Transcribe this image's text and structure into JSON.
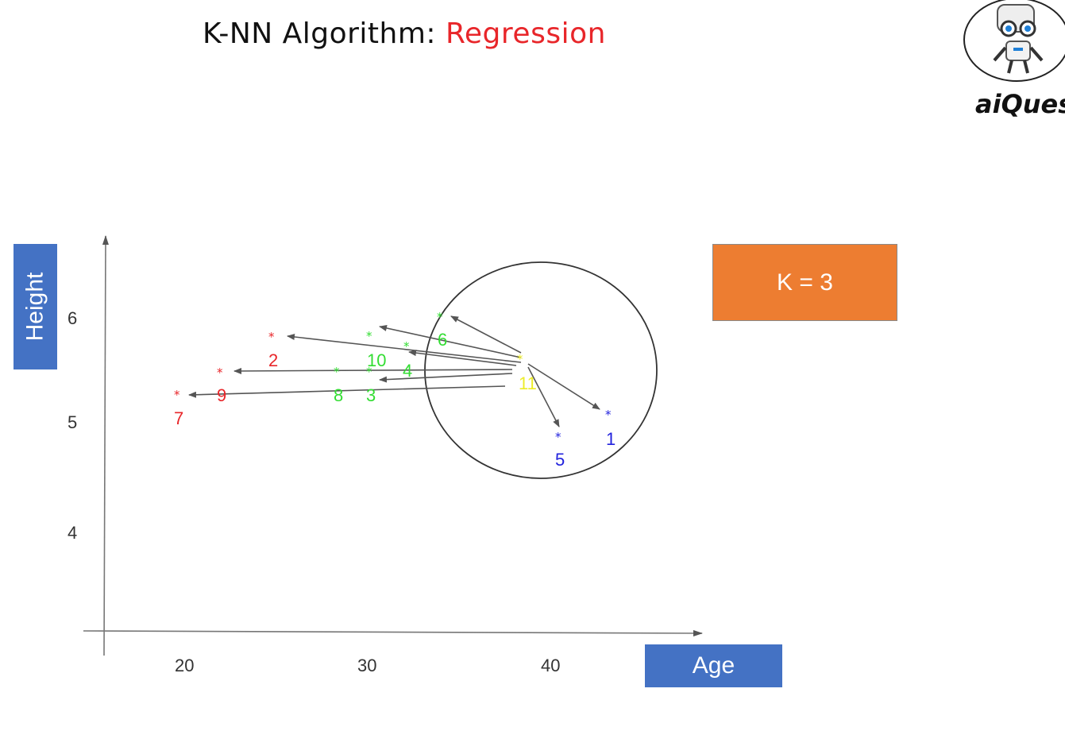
{
  "title": {
    "prefix": "K-NN Algorithm: ",
    "accent": "Regression"
  },
  "brand": {
    "name": "aiQues"
  },
  "k_label": "K = 3",
  "colors": {
    "red_class": "#e8262a",
    "green_class": "#33dd33",
    "blue_class": "#2222dd",
    "query": "#eded2a",
    "axis_label_bg": "#4472c4",
    "k_box_bg": "#ed7d31"
  },
  "chart_data": {
    "type": "scatter",
    "title": "",
    "xlabel": "Age",
    "ylabel": "Height",
    "x_ticks": [
      "20",
      "30",
      "40"
    ],
    "y_ticks": [
      "6",
      "5",
      "4"
    ],
    "xlim": [
      15.7,
      48
    ],
    "ylim": [
      3.05,
      6.75
    ],
    "points": [
      {
        "id": "1",
        "label": "1",
        "x": 43.5,
        "y": 5.1,
        "color": "#2222dd"
      },
      {
        "id": "2",
        "label": "2",
        "x": 24.9,
        "y": 5.8,
        "color": "#e8262a"
      },
      {
        "id": "3",
        "label": "3",
        "x": 30.1,
        "y": 5.45,
        "color": "#33dd33"
      },
      {
        "id": "4",
        "label": "4",
        "x": 32.3,
        "y": 5.7,
        "color": "#33dd33"
      },
      {
        "id": "5",
        "label": "5",
        "x": 40.5,
        "y": 4.88,
        "color": "#2222dd"
      },
      {
        "id": "6",
        "label": "6",
        "x": 34.1,
        "y": 6.03,
        "color": "#33dd33"
      },
      {
        "id": "7",
        "label": "7",
        "x": 19.6,
        "y": 5.26,
        "color": "#e8262a"
      },
      {
        "id": "8",
        "label": "8",
        "x": 28.3,
        "y": 5.45,
        "color": "#33dd33"
      },
      {
        "id": "9",
        "label": "9",
        "x": 21.9,
        "y": 5.47,
        "color": "#e8262a"
      },
      {
        "id": "10",
        "label": "10",
        "x": 30.2,
        "y": 5.8,
        "color": "#33dd33"
      },
      {
        "id": "11",
        "label": "11",
        "x": 38.4,
        "y": 5.62,
        "color": "#eded2a"
      }
    ],
    "neighbor_circle": {
      "center_x": 38.4,
      "center_y": 5.5,
      "radius_label": "K = 3"
    }
  }
}
